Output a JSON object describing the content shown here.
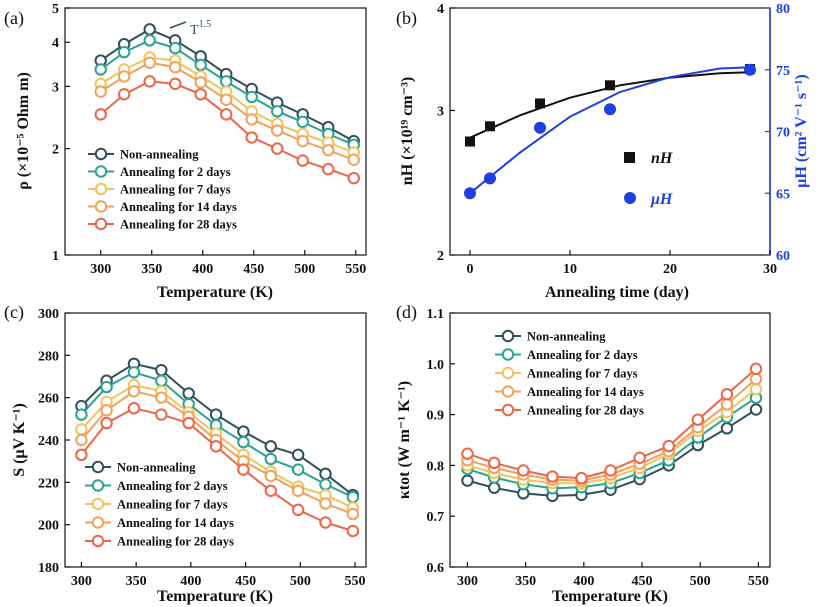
{
  "colors": {
    "non_annealing": "#2f4f5f",
    "annealing_2": "#2aa38f",
    "annealing_7": "#f1c35c",
    "annealing_14": "#f0a15c",
    "annealing_28": "#ec6548",
    "nH": "#111111",
    "muH": "#1f3fe0"
  },
  "chart_data": [
    {
      "panel": "(a)",
      "type": "line",
      "scale_y": "log",
      "xlabel": "Temperature (K)",
      "ylabel": "ρ (×10⁻⁵ Ohm m)",
      "xlim": [
        265,
        560
      ],
      "ylim": [
        1,
        5
      ],
      "xticks": [
        300,
        350,
        400,
        450,
        500,
        550
      ],
      "yticks": [
        1,
        2,
        3,
        4,
        5
      ],
      "x": [
        300,
        323,
        348,
        373,
        398,
        423,
        448,
        473,
        498,
        523,
        548
      ],
      "series": [
        {
          "name": "Non-annealing",
          "color_key": "non_annealing",
          "values": [
            3.55,
            3.95,
            4.35,
            4.05,
            3.65,
            3.25,
            2.95,
            2.7,
            2.5,
            2.3,
            2.1
          ]
        },
        {
          "name": "Annealing for 2 days",
          "color_key": "annealing_2",
          "values": [
            3.35,
            3.75,
            4.05,
            3.85,
            3.45,
            3.1,
            2.8,
            2.55,
            2.38,
            2.2,
            2.05
          ]
        },
        {
          "name": "Annealing for 7 days",
          "color_key": "annealing_7",
          "values": [
            3.05,
            3.35,
            3.62,
            3.55,
            3.2,
            2.9,
            2.55,
            2.35,
            2.2,
            2.08,
            1.95
          ]
        },
        {
          "name": "Annealing for 14 days",
          "color_key": "annealing_14",
          "values": [
            2.9,
            3.2,
            3.5,
            3.4,
            3.08,
            2.75,
            2.42,
            2.25,
            2.1,
            1.98,
            1.86
          ]
        },
        {
          "name": "Annealing for 28 days",
          "color_key": "annealing_28",
          "values": [
            2.5,
            2.85,
            3.1,
            3.05,
            2.85,
            2.5,
            2.15,
            2.0,
            1.85,
            1.75,
            1.65
          ]
        }
      ],
      "annotation": {
        "text": "T",
        "superscript": "1.5"
      },
      "legend_position": "bottom-left"
    },
    {
      "panel": "(b)",
      "type": "scatter",
      "xlabel": "Annealing time (day)",
      "ylabel_left": "nH (×10¹⁹ cm⁻³)",
      "ylabel_right": "μH (cm² V⁻¹ s⁻¹)",
      "xlim": [
        -2,
        30
      ],
      "ylim_left": [
        2,
        4
      ],
      "ylim_right": [
        60,
        80
      ],
      "scale_y_left": "log",
      "xticks": [
        0,
        10,
        20,
        30
      ],
      "yticks_left": [
        2,
        3,
        4
      ],
      "yticks_right": [
        60,
        65,
        70,
        75,
        80
      ],
      "series": [
        {
          "name": "nH",
          "symbol": "square",
          "color_key": "nH",
          "axis": "left",
          "x": [
            0,
            2,
            7,
            14,
            28
          ],
          "values": [
            2.75,
            2.87,
            3.06,
            3.22,
            3.37
          ]
        },
        {
          "name": "μH",
          "symbol": "circle",
          "color_key": "muH",
          "axis": "right",
          "x": [
            0,
            2,
            7,
            14,
            28
          ],
          "values": [
            65.0,
            66.2,
            70.3,
            71.8,
            75.0
          ]
        }
      ],
      "fit_lines": [
        {
          "color_key": "nH",
          "axis": "left",
          "x": [
            0,
            5,
            10,
            15,
            20,
            25,
            28
          ],
          "values": [
            2.78,
            2.96,
            3.11,
            3.22,
            3.29,
            3.33,
            3.34
          ]
        },
        {
          "color_key": "muH",
          "axis": "right",
          "x": [
            0,
            5,
            10,
            15,
            20,
            25,
            28
          ],
          "values": [
            65.0,
            68.3,
            71.2,
            73.2,
            74.4,
            75.1,
            75.2
          ]
        }
      ],
      "legend_position": "center-right"
    },
    {
      "panel": "(c)",
      "type": "line",
      "xlabel": "Temperature (K)",
      "ylabel": "S (μV K⁻¹)",
      "xlim": [
        285,
        560
      ],
      "ylim": [
        180,
        300
      ],
      "xticks": [
        300,
        350,
        400,
        450,
        500,
        550
      ],
      "yticks": [
        180,
        200,
        220,
        240,
        260,
        280,
        300
      ],
      "x": [
        300,
        323,
        348,
        373,
        398,
        423,
        448,
        473,
        498,
        523,
        548
      ],
      "series": [
        {
          "name": "Non-annealing",
          "color_key": "non_annealing",
          "values": [
            256,
            268,
            276,
            273,
            262,
            252,
            244,
            237,
            233,
            224,
            214
          ]
        },
        {
          "name": "Annealing for 2 days",
          "color_key": "annealing_2",
          "values": [
            252,
            265,
            272,
            268,
            257,
            247,
            239,
            231,
            226,
            219,
            213
          ]
        },
        {
          "name": "Annealing for 7 days",
          "color_key": "annealing_7",
          "values": [
            245,
            258,
            266,
            263,
            253,
            243,
            233,
            225,
            218,
            214,
            208
          ]
        },
        {
          "name": "Annealing for 14 days",
          "color_key": "annealing_14",
          "values": [
            240,
            254,
            263,
            260,
            251,
            240,
            230,
            223,
            216,
            210,
            205
          ]
        },
        {
          "name": "Annealing for 28 days",
          "color_key": "annealing_28",
          "values": [
            233,
            248,
            255,
            252,
            248,
            237,
            226,
            216,
            207,
            201,
            197
          ]
        }
      ],
      "legend_position": "bottom-left"
    },
    {
      "panel": "(d)",
      "type": "line",
      "xlabel": "Temperature (K)",
      "ylabel": "κtot (W m⁻¹ K⁻¹)",
      "xlim": [
        285,
        560
      ],
      "ylim": [
        0.6,
        1.1
      ],
      "xticks": [
        300,
        350,
        400,
        450,
        500,
        550
      ],
      "yticks": [
        0.6,
        0.7,
        0.8,
        0.9,
        1.0,
        1.1
      ],
      "x": [
        300,
        323,
        348,
        373,
        398,
        423,
        448,
        473,
        498,
        523,
        548
      ],
      "series": [
        {
          "name": "Non-annealing",
          "color_key": "non_annealing",
          "values": [
            0.77,
            0.756,
            0.745,
            0.74,
            0.742,
            0.752,
            0.773,
            0.8,
            0.84,
            0.873,
            0.91
          ]
        },
        {
          "name": "Annealing for 2 days",
          "color_key": "annealing_2",
          "values": [
            0.793,
            0.776,
            0.763,
            0.755,
            0.757,
            0.765,
            0.785,
            0.81,
            0.855,
            0.895,
            0.933
          ]
        },
        {
          "name": "Annealing for 7 days",
          "color_key": "annealing_7",
          "values": [
            0.8,
            0.785,
            0.772,
            0.765,
            0.765,
            0.775,
            0.795,
            0.822,
            0.868,
            0.905,
            0.95
          ]
        },
        {
          "name": "Annealing for 14 days",
          "color_key": "annealing_14",
          "values": [
            0.81,
            0.795,
            0.782,
            0.772,
            0.77,
            0.782,
            0.803,
            0.828,
            0.875,
            0.92,
            0.97
          ]
        },
        {
          "name": "Annealing for 28 days",
          "color_key": "annealing_28",
          "values": [
            0.823,
            0.805,
            0.79,
            0.778,
            0.775,
            0.79,
            0.815,
            0.838,
            0.89,
            0.94,
            0.99
          ]
        }
      ],
      "legend_position": "top-left"
    }
  ]
}
